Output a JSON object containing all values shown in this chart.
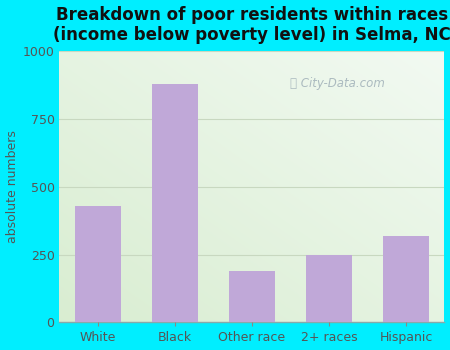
{
  "categories": [
    "White",
    "Black",
    "Other race",
    "2+ races",
    "Hispanic"
  ],
  "values": [
    430,
    880,
    190,
    250,
    320
  ],
  "bar_color": "#c0a8d8",
  "bar_edgecolor": "none",
  "title": "Breakdown of poor residents within races\n(income below poverty level) in Selma, NC",
  "ylabel": "absolute numbers",
  "ylim": [
    0,
    1000
  ],
  "yticks": [
    0,
    250,
    500,
    750,
    1000
  ],
  "background_outer": "#00eeff",
  "background_plot_left": "#d8ecd0",
  "background_plot_right": "#eef8ee",
  "grid_color": "#c8d8c0",
  "title_color": "#111111",
  "title_fontsize": 12,
  "ylabel_fontsize": 9,
  "tick_fontsize": 9,
  "tick_color": "#555555",
  "watermark_text": "City-Data.com",
  "watermark_color": "#a0b0b8",
  "bar_width": 0.6
}
